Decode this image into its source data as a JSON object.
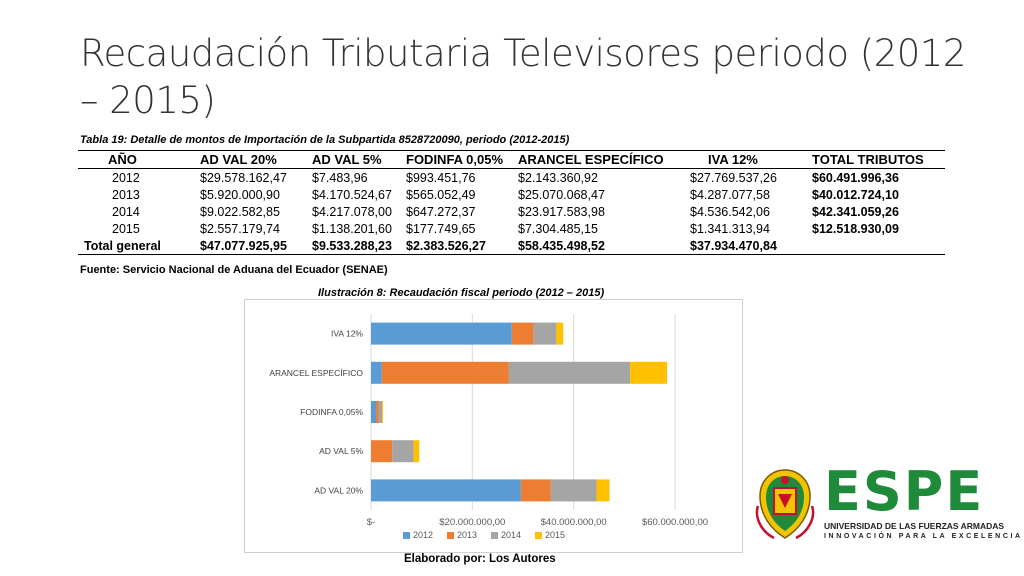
{
  "title": "Recaudación Tributaria Televisores periodo (2012 – 2015)",
  "table": {
    "caption": "Tabla 19: Detalle de montos de Importación de la Subpartida 8528720090, periodo (2012-2015)",
    "headers": [
      "AÑO",
      "AD VAL 20%",
      "AD VAL 5%",
      "FODINFA 0,05%",
      "ARANCEL ESPECÍFICO",
      "IVA 12%",
      "TOTAL TRIBUTOS"
    ],
    "rows": [
      [
        "2012",
        "$29.578.162,47",
        "$7.483,96",
        "$993.451,76",
        "$2.143.360,92",
        "$27.769.537,26",
        "$60.491.996,36"
      ],
      [
        "2013",
        "$5.920.000,90",
        "$4.170.524,67",
        "$565.052,49",
        "$25.070.068,47",
        "$4.287.077,58",
        "$40.012.724,10"
      ],
      [
        "2014",
        "$9.022.582,85",
        "$4.217.078,00",
        "$647.272,37",
        "$23.917.583,98",
        "$4.536.542,06",
        "$42.341.059,26"
      ],
      [
        "2015",
        "$2.557.179,74",
        "$1.138.201,60",
        "$177.749,65",
        "$7.304.485,15",
        "$1.341.313,94",
        "$12.518.930,09"
      ]
    ],
    "total": [
      "Total general",
      "$47.077.925,95",
      "$9.533.288,23",
      "$2.383.526,27",
      "$58.435.498,52",
      "$37.934.470,84",
      ""
    ],
    "source": "Fuente: Servicio Nacional de Aduana del Ecuador (SENAE)"
  },
  "figure": {
    "caption": "Ilustración 8: Recaudación fiscal periodo (2012 – 2015)",
    "credit": "Elaborado por: Los Autores"
  },
  "chart_data": {
    "type": "bar",
    "orientation": "horizontal",
    "stacked": true,
    "categories": [
      "IVA 12%",
      "ARANCEL ESPECÍFICO",
      "FODINFA 0,05%",
      "AD VAL 5%",
      "AD VAL 20%"
    ],
    "series": [
      {
        "name": "2012",
        "color": "#5b9bd5",
        "values": [
          27769537.26,
          2143360.92,
          993451.76,
          7483.96,
          29578162.47
        ]
      },
      {
        "name": "2013",
        "color": "#ed7d31",
        "values": [
          4287077.58,
          25070068.47,
          565052.49,
          4170524.67,
          5920000.9
        ]
      },
      {
        "name": "2014",
        "color": "#a5a5a5",
        "values": [
          4536542.06,
          23917583.98,
          647272.37,
          4217078.0,
          9022582.85
        ]
      },
      {
        "name": "2015",
        "color": "#ffc000",
        "values": [
          1341313.94,
          7304485.15,
          177749.65,
          1138201.6,
          2557179.74
        ]
      }
    ],
    "xlim": [
      0,
      60000000
    ],
    "xticks": [
      0,
      20000000,
      40000000,
      60000000
    ],
    "xtick_labels": [
      "$-",
      "$20.000.000,00",
      "$40.000.000,00",
      "$60.000.000,00"
    ],
    "grid": true,
    "legend": "bottom"
  },
  "logo": {
    "brand": "ESPE",
    "university": "UNIVERSIDAD DE LAS FUERZAS ARMADAS",
    "motto": "INNOVACIÓN PARA LA EXCELENCIA",
    "crest_text": "ESPE ECUADOR",
    "colors": {
      "green": "#1f8a3a",
      "red": "#c8102e",
      "yellow": "#f2c300"
    }
  }
}
